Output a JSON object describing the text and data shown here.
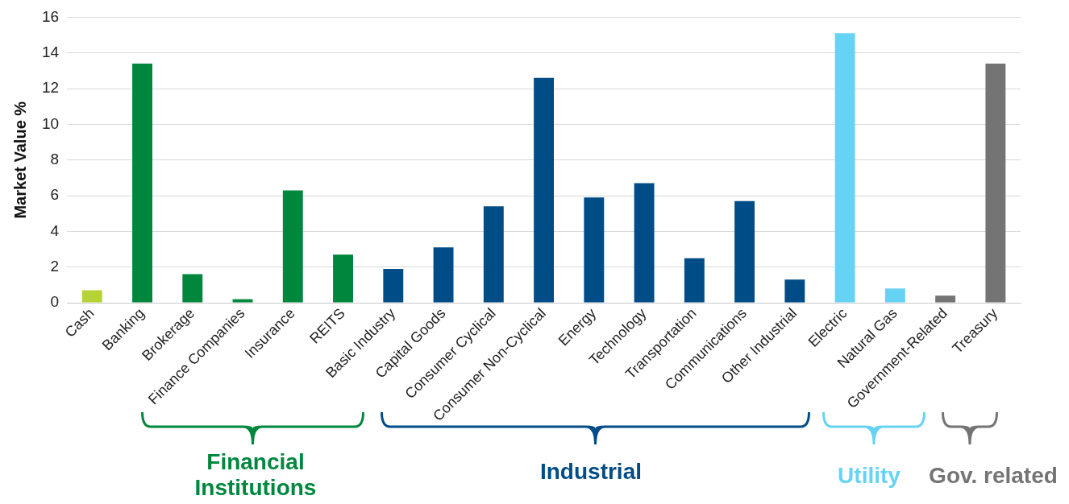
{
  "chart_data": {
    "type": "bar",
    "ylabel": "Market Value %",
    "categories": [
      "Cash",
      "Banking",
      "Brokerage",
      "Finance Companies",
      "Insurance",
      "REITS",
      "Basic Industry",
      "Capital Goods",
      "Consumer Cyclical",
      "Consumer Non-Cyclical",
      "Energy",
      "Technology",
      "Transportation",
      "Communications",
      "Other Industrial",
      "Electric",
      "Natural Gas",
      "Government-Related",
      "Treasury"
    ],
    "values": [
      0.7,
      13.4,
      1.6,
      0.2,
      6.3,
      2.7,
      1.9,
      3.1,
      5.4,
      12.6,
      5.9,
      6.7,
      2.5,
      5.7,
      1.3,
      15.1,
      0.8,
      0.4,
      13.4
    ],
    "colors": [
      "#b5d334",
      "#00873e",
      "#00873e",
      "#00873e",
      "#00873e",
      "#00873e",
      "#004c87",
      "#004c87",
      "#004c87",
      "#004c87",
      "#004c87",
      "#004c87",
      "#004c87",
      "#004c87",
      "#004c87",
      "#66d3f5",
      "#66d3f5",
      "#747474",
      "#747474"
    ],
    "ylim": [
      0,
      16
    ],
    "yticks": [
      0,
      2,
      4,
      6,
      8,
      10,
      12,
      14,
      16
    ],
    "grid": "y",
    "legend": false,
    "annotations": [
      "Financial Institutions",
      "Industrial",
      "Utility",
      "Gov. related"
    ]
  }
}
